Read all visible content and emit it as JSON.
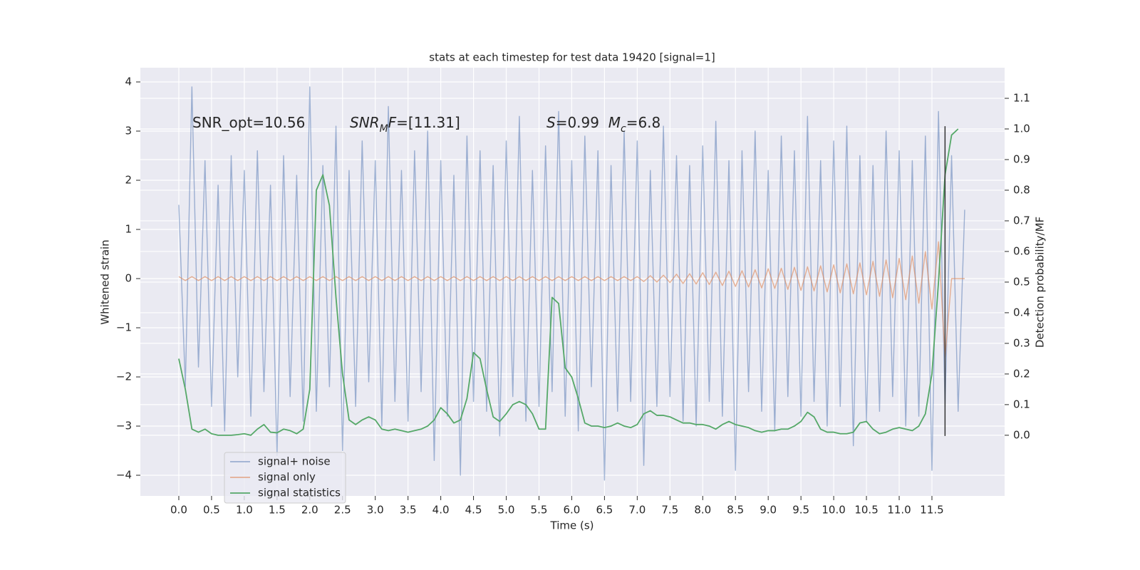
{
  "chart_data": {
    "type": "line",
    "title": "stats at each timestep for test data 19420 [signal=1]",
    "xlabel": "Time (s)",
    "ylabel": "Whitened strain",
    "y2label": "Detection probability/MF",
    "xlim": [
      -0.587,
      12.61
    ],
    "ylim": [
      -4.42,
      4.29
    ],
    "y2lim": [
      -0.198,
      1.2
    ],
    "xticks": [
      {
        "value": 0,
        "label": "0.0"
      },
      0.5,
      {
        "value": 1,
        "label": "1.0"
      },
      1.5,
      {
        "value": 2,
        "label": "2.0"
      },
      2.5,
      {
        "value": 3,
        "label": "3.0"
      },
      3.5,
      {
        "value": 4,
        "label": "4.0"
      },
      4.5,
      {
        "value": 5,
        "label": "5.0"
      },
      5.5,
      {
        "value": 6,
        "label": "6.0"
      },
      6.5,
      {
        "value": 7,
        "label": "7.0"
      },
      7.5,
      {
        "value": 8,
        "label": "8.0"
      },
      8.5,
      {
        "value": 9,
        "label": "9.0"
      },
      9.5,
      {
        "value": 10,
        "label": "10.0"
      },
      10.5,
      {
        "value": 11,
        "label": "11.0"
      },
      11.5
    ],
    "yticks": [
      {
        "value": -4,
        "label": "−4"
      },
      {
        "value": -3,
        "label": "−3"
      },
      {
        "value": -2,
        "label": "−2"
      },
      {
        "value": -1,
        "label": "−1"
      },
      0,
      1,
      2,
      3,
      4
    ],
    "y2ticks": [
      {
        "value": 0,
        "label": "0.0"
      },
      0.1,
      0.2,
      0.3,
      0.4,
      0.5,
      0.6,
      0.7,
      0.8,
      0.9,
      {
        "value": 1,
        "label": "1.0"
      },
      1.1
    ],
    "grid": true,
    "legend": "lower left",
    "background": "#eaeaf2",
    "x": [
      0,
      0.1,
      0.2,
      0.3,
      0.4,
      0.5,
      0.6,
      0.7,
      0.8,
      0.9,
      1,
      1.1,
      1.2,
      1.3,
      1.4,
      1.5,
      1.6,
      1.7,
      1.8,
      1.9,
      2,
      2.1,
      2.2,
      2.3,
      2.4,
      2.5,
      2.6,
      2.7,
      2.8,
      2.9,
      3,
      3.1,
      3.2,
      3.3,
      3.4,
      3.5,
      3.6,
      3.7,
      3.8,
      3.9,
      4,
      4.1,
      4.2,
      4.3,
      4.4,
      4.5,
      4.6,
      4.7,
      4.8,
      4.9,
      5,
      5.1,
      5.2,
      5.3,
      5.4,
      5.5,
      5.6,
      5.7,
      5.8,
      5.9,
      6,
      6.1,
      6.2,
      6.3,
      6.4,
      6.5,
      6.6,
      6.7,
      6.8,
      6.9,
      7,
      7.1,
      7.2,
      7.3,
      7.4,
      7.5,
      7.6,
      7.7,
      7.8,
      7.9,
      8,
      8.1,
      8.2,
      8.3,
      8.4,
      8.5,
      8.6,
      8.7,
      8.8,
      8.9,
      9,
      9.1,
      9.2,
      9.3,
      9.4,
      9.5,
      9.6,
      9.7,
      9.8,
      9.9,
      10,
      10.1,
      10.2,
      10.3,
      10.4,
      10.5,
      10.6,
      10.7,
      10.8,
      10.9,
      11,
      11.1,
      11.2,
      11.3,
      11.4,
      11.5,
      11.6,
      11.7,
      11.8,
      11.9,
      12
    ],
    "series": [
      {
        "name": "signal+ noise",
        "color": "#4c72b0",
        "opacity": 0.5,
        "values": [
          1.5,
          -2.2,
          3.9,
          -1.8,
          2.4,
          -2.6,
          1.9,
          -3.1,
          2.5,
          -2.0,
          2.2,
          -2.8,
          2.6,
          -2.3,
          1.9,
          -3.6,
          2.5,
          -2.4,
          2.1,
          -2.9,
          3.9,
          -2.7,
          2.3,
          -2.2,
          3.1,
          -3.5,
          2.2,
          -2.6,
          2.8,
          -2.1,
          2.4,
          -3.0,
          3.5,
          -2.5,
          2.2,
          -2.9,
          2.6,
          -2.3,
          3.0,
          -3.7,
          2.4,
          -2.8,
          2.1,
          -4.0,
          2.9,
          -2.5,
          2.6,
          -2.7,
          2.3,
          -3.2,
          2.8,
          -2.4,
          3.3,
          -2.9,
          2.2,
          -2.6,
          2.7,
          -2.3,
          3.4,
          -2.8,
          2.4,
          -3.1,
          2.9,
          -2.2,
          2.6,
          -4.1,
          2.3,
          -2.7,
          3.0,
          -2.5,
          2.8,
          -3.8,
          2.2,
          -2.6,
          3.1,
          -2.4,
          2.5,
          -2.9,
          2.3,
          -3.0,
          2.7,
          -2.5,
          3.2,
          -2.8,
          2.4,
          -3.9,
          2.6,
          -2.3,
          3.0,
          -2.7,
          2.2,
          -3.1,
          2.9,
          -2.4,
          2.6,
          -2.8,
          3.3,
          -2.5,
          2.4,
          -3.0,
          2.8,
          -2.6,
          3.1,
          -3.4,
          2.5,
          -2.9,
          2.3,
          -2.7,
          3.0,
          -2.4,
          2.6,
          -3.0,
          2.4,
          -2.8,
          2.9,
          -3.9,
          3.4,
          -2.6,
          2.5,
          -2.7,
          1.4
        ]
      },
      {
        "name": "signal only",
        "color": "#dd8452",
        "opacity": 0.6,
        "values": [
          0.04,
          -0.04,
          0.04,
          -0.04,
          0.04,
          -0.04,
          0.04,
          -0.04,
          0.04,
          -0.04,
          0.04,
          -0.04,
          0.04,
          -0.04,
          0.04,
          -0.04,
          0.04,
          -0.04,
          0.04,
          -0.04,
          0.04,
          -0.04,
          0.04,
          -0.04,
          0.04,
          -0.04,
          0.04,
          -0.04,
          0.04,
          -0.04,
          0.04,
          -0.04,
          0.04,
          -0.04,
          0.04,
          -0.04,
          0.04,
          -0.04,
          0.04,
          -0.04,
          0.04,
          -0.04,
          0.04,
          -0.04,
          0.04,
          -0.04,
          0.04,
          -0.04,
          0.04,
          -0.04,
          0.04,
          -0.04,
          0.04,
          -0.04,
          0.04,
          -0.04,
          0.04,
          -0.04,
          0.04,
          -0.04,
          0.04,
          -0.04,
          0.04,
          -0.04,
          0.04,
          -0.04,
          0.04,
          -0.04,
          0.04,
          -0.04,
          0.04,
          -0.06,
          0.06,
          -0.07,
          0.07,
          -0.08,
          0.09,
          -0.1,
          0.1,
          -0.11,
          0.12,
          -0.12,
          0.13,
          -0.14,
          0.15,
          -0.16,
          0.16,
          -0.17,
          0.18,
          -0.19,
          0.2,
          -0.2,
          0.21,
          -0.22,
          0.23,
          -0.24,
          0.24,
          -0.25,
          0.26,
          -0.27,
          0.28,
          -0.29,
          0.3,
          -0.31,
          0.32,
          -0.33,
          0.35,
          -0.36,
          0.38,
          -0.39,
          0.41,
          -0.43,
          0.46,
          -0.5,
          0.55,
          -0.62,
          0.75,
          -1.6,
          0,
          0,
          0
        ]
      },
      {
        "name": "signal statistics",
        "color": "#55a868",
        "axis": "y2",
        "values": [
          0.25,
          0.15,
          0.02,
          0.01,
          0.02,
          0.005,
          0,
          0,
          0,
          0.002,
          0.005,
          0,
          0.02,
          0.035,
          0.01,
          0.008,
          0.02,
          0.015,
          0.005,
          0.02,
          0.15,
          0.8,
          0.85,
          0.75,
          0.45,
          0.2,
          0.05,
          0.035,
          0.05,
          0.06,
          0.05,
          0.02,
          0.015,
          0.02,
          0.015,
          0.01,
          0.015,
          0.02,
          0.03,
          0.05,
          0.09,
          0.07,
          0.04,
          0.05,
          0.12,
          0.27,
          0.25,
          0.15,
          0.06,
          0.045,
          0.07,
          0.1,
          0.11,
          0.1,
          0.07,
          0.02,
          0.02,
          0.45,
          0.43,
          0.22,
          0.19,
          0.12,
          0.04,
          0.03,
          0.03,
          0.025,
          0.03,
          0.04,
          0.03,
          0.025,
          0.035,
          0.07,
          0.08,
          0.065,
          0.065,
          0.06,
          0.05,
          0.04,
          0.04,
          0.035,
          0.035,
          0.03,
          0.02,
          0.035,
          0.045,
          0.035,
          0.03,
          0.025,
          0.015,
          0.01,
          0.015,
          0.015,
          0.02,
          0.02,
          0.03,
          0.045,
          0.075,
          0.06,
          0.02,
          0.01,
          0.01,
          0.005,
          0.005,
          0.01,
          0.04,
          0.045,
          0.02,
          0.005,
          0.01,
          0.02,
          0.025,
          0.02,
          0.015,
          0.03,
          0.07,
          0.2,
          0.5,
          0.85,
          0.98,
          1.0,
          null
        ]
      }
    ],
    "vline": {
      "x": 11.7,
      "ymin": -3.2,
      "ymax": 3.1,
      "color": "#333333"
    },
    "annotations": [
      [
        {
          "text": "SNR_opt=10.56"
        }
      ],
      [
        {
          "text": "SNR",
          "style": "italic"
        },
        {
          "text": "M",
          "style": "italic",
          "sub": true
        },
        {
          "text": "F",
          "style": "italic"
        },
        {
          "text": "=[11.31]"
        }
      ],
      [
        {
          "text": "S",
          "style": "italic"
        },
        {
          "text": "=0.99  "
        },
        {
          "text": "M",
          "style": "italic"
        },
        {
          "text": "c",
          "style": "italic",
          "sub": true
        },
        {
          "text": "=6.8"
        }
      ]
    ]
  }
}
